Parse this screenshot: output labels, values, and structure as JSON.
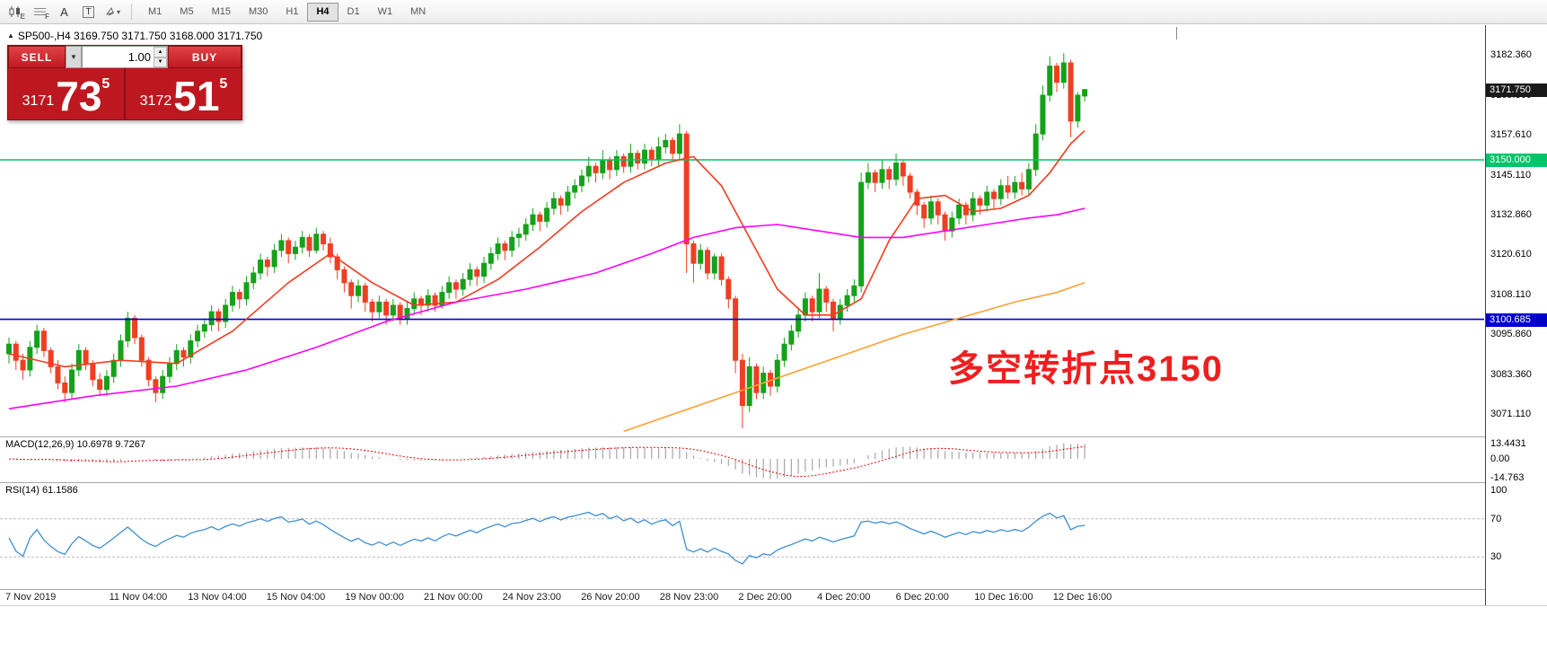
{
  "toolbar": {
    "timeframes": [
      "M1",
      "M5",
      "M15",
      "M30",
      "H1",
      "H4",
      "D1",
      "W1",
      "MN"
    ],
    "active_timeframe": "H4"
  },
  "chart_header": {
    "marker": "▲",
    "symbol_line": "SP500-,H4 3169.750 3171.750 3168.000 3171.750"
  },
  "trade_panel": {
    "sell_label": "SELL",
    "buy_label": "BUY",
    "volume": "1.00",
    "bid": {
      "prefix": "3171",
      "main": "73",
      "sup": "5"
    },
    "ask": {
      "prefix": "3172",
      "main": "51",
      "sup": "5"
    }
  },
  "annotation": {
    "text": "多空转折点3150",
    "color": "#ef1f1f"
  },
  "price_axis": {
    "labels": [
      3182.36,
      3169.86,
      3157.61,
      3145.11,
      3132.86,
      3120.61,
      3108.11,
      3095.86,
      3083.36,
      3071.11
    ],
    "tags": [
      {
        "name": "current-price-tag",
        "text": "3171.750",
        "price": 3171.75,
        "bg": "#1a1a1a",
        "fg": "#ffffff"
      },
      {
        "name": "resistance-line-tag",
        "text": "3150.000",
        "price": 3150.0,
        "bg": "#00c46a",
        "fg": "#ffffff"
      },
      {
        "name": "support-line-tag",
        "text": "3100.685",
        "price": 3100.685,
        "bg": "#0000cc",
        "fg": "#ffffff"
      }
    ]
  },
  "hlines": [
    {
      "name": "resistance-3150",
      "price": 3150.0,
      "color": "#00c46a",
      "width": 1.4
    },
    {
      "name": "support-3100",
      "price": 3100.685,
      "color": "#0000cc",
      "width": 1.6
    }
  ],
  "macd_panel": {
    "label": "MACD(12,26,9) 10.6978 9.7267",
    "axis": [
      {
        "text": "13.4431",
        "value": 13.4431
      },
      {
        "text": "0.00",
        "value": 0
      },
      {
        "text": "-14.763",
        "value": -14.763
      }
    ],
    "histogram_color": "#a6a6a6",
    "signal_color": "#e00000"
  },
  "rsi_panel": {
    "label": "RSI(14) 61.1586",
    "axis": [
      {
        "text": "100",
        "value": 100
      },
      {
        "text": "70",
        "value": 70
      },
      {
        "text": "30",
        "value": 30
      }
    ],
    "levels": [
      70,
      30
    ],
    "line_color": "#3f8fd2"
  },
  "time_axis": [
    "7 Nov 2019",
    "11 Nov 04:00",
    "13 Nov 04:00",
    "15 Nov 04:00",
    "19 Nov 00:00",
    "21 Nov 00:00",
    "24 Nov 23:00",
    "26 Nov 20:00",
    "28 Nov 23:00",
    "2 Dec 20:00",
    "4 Dec 20:00",
    "6 Dec 20:00",
    "10 Dec 16:00",
    "12 Dec 16:00"
  ],
  "chart_data": {
    "type": "candlestick",
    "symbol": "SP500-",
    "timeframe": "H4",
    "ylim": [
      3064,
      3192
    ],
    "colors": {
      "up": "#15a11a",
      "down": "#ee3f23"
    },
    "ohlc": [
      [
        3090,
        3095,
        3087,
        3093
      ],
      [
        3093,
        3094,
        3085,
        3088
      ],
      [
        3088,
        3090,
        3082,
        3085
      ],
      [
        3085,
        3094,
        3083,
        3092
      ],
      [
        3092,
        3099,
        3090,
        3097
      ],
      [
        3097,
        3098,
        3089,
        3091
      ],
      [
        3091,
        3092,
        3084,
        3086
      ],
      [
        3086,
        3088,
        3079,
        3081
      ],
      [
        3081,
        3083,
        3075,
        3078
      ],
      [
        3078,
        3087,
        3076,
        3085
      ],
      [
        3085,
        3093,
        3083,
        3091
      ],
      [
        3091,
        3092,
        3085,
        3087
      ],
      [
        3087,
        3088,
        3080,
        3082
      ],
      [
        3082,
        3084,
        3077,
        3079
      ],
      [
        3079,
        3085,
        3077,
        3083
      ],
      [
        3083,
        3090,
        3081,
        3088
      ],
      [
        3088,
        3096,
        3086,
        3094
      ],
      [
        3094,
        3103,
        3092,
        3101
      ],
      [
        3101,
        3102,
        3093,
        3095
      ],
      [
        3095,
        3096,
        3086,
        3088
      ],
      [
        3088,
        3089,
        3080,
        3082
      ],
      [
        3082,
        3083,
        3075,
        3078
      ],
      [
        3078,
        3085,
        3076,
        3083
      ],
      [
        3083,
        3089,
        3081,
        3087
      ],
      [
        3087,
        3093,
        3085,
        3091
      ],
      [
        3091,
        3092,
        3086,
        3089
      ],
      [
        3089,
        3096,
        3087,
        3094
      ],
      [
        3094,
        3099,
        3092,
        3097
      ],
      [
        3097,
        3101,
        3095,
        3099
      ],
      [
        3099,
        3105,
        3097,
        3103
      ],
      [
        3103,
        3104,
        3097,
        3100
      ],
      [
        3100,
        3107,
        3098,
        3105
      ],
      [
        3105,
        3111,
        3103,
        3109
      ],
      [
        3109,
        3110,
        3104,
        3107
      ],
      [
        3107,
        3114,
        3105,
        3112
      ],
      [
        3112,
        3117,
        3110,
        3115
      ],
      [
        3115,
        3121,
        3113,
        3119
      ],
      [
        3119,
        3120,
        3114,
        3117
      ],
      [
        3117,
        3124,
        3115,
        3122
      ],
      [
        3122,
        3127,
        3120,
        3125
      ],
      [
        3125,
        3126,
        3118,
        3121
      ],
      [
        3121,
        3125,
        3119,
        3123
      ],
      [
        3123,
        3128,
        3121,
        3126
      ],
      [
        3126,
        3127,
        3120,
        3122
      ],
      [
        3122,
        3129,
        3121,
        3127
      ],
      [
        3127,
        3128,
        3122,
        3124
      ],
      [
        3124,
        3126,
        3118,
        3120
      ],
      [
        3120,
        3121,
        3113,
        3116
      ],
      [
        3116,
        3117,
        3109,
        3112
      ],
      [
        3112,
        3113,
        3104,
        3108
      ],
      [
        3108,
        3113,
        3106,
        3111
      ],
      [
        3111,
        3112,
        3103,
        3106
      ],
      [
        3106,
        3107,
        3100,
        3103
      ],
      [
        3103,
        3108,
        3101,
        3106
      ],
      [
        3106,
        3107,
        3099,
        3102
      ],
      [
        3102,
        3107,
        3100,
        3105
      ],
      [
        3105,
        3106,
        3099,
        3101
      ],
      [
        3101,
        3106,
        3099,
        3104
      ],
      [
        3104,
        3109,
        3102,
        3107
      ],
      [
        3107,
        3108,
        3102,
        3105
      ],
      [
        3105,
        3110,
        3103,
        3108
      ],
      [
        3108,
        3109,
        3103,
        3105
      ],
      [
        3105,
        3111,
        3104,
        3109
      ],
      [
        3109,
        3114,
        3107,
        3112
      ],
      [
        3112,
        3113,
        3107,
        3110
      ],
      [
        3110,
        3115,
        3108,
        3113
      ],
      [
        3113,
        3118,
        3111,
        3116
      ],
      [
        3116,
        3117,
        3111,
        3114
      ],
      [
        3114,
        3120,
        3112,
        3118
      ],
      [
        3118,
        3123,
        3116,
        3121
      ],
      [
        3121,
        3126,
        3119,
        3124
      ],
      [
        3124,
        3125,
        3119,
        3122
      ],
      [
        3122,
        3128,
        3120,
        3126
      ],
      [
        3126,
        3129,
        3123,
        3127
      ],
      [
        3127,
        3132,
        3125,
        3130
      ],
      [
        3130,
        3135,
        3128,
        3133
      ],
      [
        3133,
        3134,
        3128,
        3131
      ],
      [
        3131,
        3137,
        3129,
        3135
      ],
      [
        3135,
        3140,
        3133,
        3138
      ],
      [
        3138,
        3139,
        3133,
        3136
      ],
      [
        3136,
        3142,
        3134,
        3140
      ],
      [
        3140,
        3144,
        3138,
        3142
      ],
      [
        3142,
        3147,
        3140,
        3145
      ],
      [
        3145,
        3151,
        3143,
        3148
      ],
      [
        3148,
        3149,
        3143,
        3146
      ],
      [
        3146,
        3153,
        3144,
        3150
      ],
      [
        3150,
        3151,
        3144,
        3147
      ],
      [
        3147,
        3153,
        3145,
        3151
      ],
      [
        3151,
        3152,
        3146,
        3148
      ],
      [
        3148,
        3155,
        3146,
        3152
      ],
      [
        3152,
        3153,
        3147,
        3149
      ],
      [
        3149,
        3155,
        3147,
        3153
      ],
      [
        3153,
        3154,
        3148,
        3150
      ],
      [
        3150,
        3157,
        3148,
        3154
      ],
      [
        3154,
        3158,
        3152,
        3156
      ],
      [
        3156,
        3157,
        3150,
        3152
      ],
      [
        3152,
        3161,
        3150,
        3158
      ],
      [
        3158,
        3159,
        3115,
        3124
      ],
      [
        3124,
        3125,
        3112,
        3118
      ],
      [
        3118,
        3124,
        3116,
        3122
      ],
      [
        3122,
        3123,
        3113,
        3115
      ],
      [
        3115,
        3121,
        3113,
        3120
      ],
      [
        3120,
        3121,
        3111,
        3113
      ],
      [
        3113,
        3114,
        3104,
        3107
      ],
      [
        3107,
        3108,
        3084,
        3088
      ],
      [
        3088,
        3090,
        3067,
        3074
      ],
      [
        3074,
        3089,
        3072,
        3086
      ],
      [
        3086,
        3087,
        3076,
        3078
      ],
      [
        3078,
        3086,
        3076,
        3084
      ],
      [
        3084,
        3085,
        3077,
        3080
      ],
      [
        3080,
        3090,
        3078,
        3088
      ],
      [
        3088,
        3095,
        3086,
        3093
      ],
      [
        3093,
        3099,
        3091,
        3097
      ],
      [
        3097,
        3104,
        3095,
        3102
      ],
      [
        3102,
        3109,
        3100,
        3107
      ],
      [
        3107,
        3108,
        3100,
        3103
      ],
      [
        3103,
        3115,
        3101,
        3110
      ],
      [
        3110,
        3111,
        3103,
        3106
      ],
      [
        3106,
        3107,
        3097,
        3101
      ],
      [
        3101,
        3107,
        3099,
        3105
      ],
      [
        3105,
        3110,
        3103,
        3108
      ],
      [
        3108,
        3113,
        3106,
        3111
      ],
      [
        3111,
        3146,
        3109,
        3143
      ],
      [
        3143,
        3149,
        3141,
        3146
      ],
      [
        3146,
        3147,
        3140,
        3143
      ],
      [
        3143,
        3150,
        3141,
        3147
      ],
      [
        3147,
        3148,
        3141,
        3144
      ],
      [
        3144,
        3152,
        3142,
        3149
      ],
      [
        3149,
        3150,
        3142,
        3145
      ],
      [
        3145,
        3146,
        3138,
        3140
      ],
      [
        3140,
        3141,
        3133,
        3136
      ],
      [
        3136,
        3137,
        3129,
        3132
      ],
      [
        3132,
        3139,
        3130,
        3137
      ],
      [
        3137,
        3138,
        3130,
        3133
      ],
      [
        3133,
        3134,
        3125,
        3128
      ],
      [
        3128,
        3134,
        3126,
        3132
      ],
      [
        3132,
        3138,
        3130,
        3136
      ],
      [
        3136,
        3137,
        3130,
        3133
      ],
      [
        3133,
        3140,
        3131,
        3138
      ],
      [
        3138,
        3139,
        3133,
        3136
      ],
      [
        3136,
        3142,
        3134,
        3140
      ],
      [
        3140,
        3141,
        3135,
        3138
      ],
      [
        3138,
        3144,
        3136,
        3142
      ],
      [
        3142,
        3145,
        3138,
        3140
      ],
      [
        3140,
        3145,
        3138,
        3143
      ],
      [
        3143,
        3146,
        3139,
        3141
      ],
      [
        3141,
        3149,
        3139,
        3147
      ],
      [
        3147,
        3161,
        3145,
        3158
      ],
      [
        3158,
        3173,
        3156,
        3170
      ],
      [
        3170,
        3182,
        3168,
        3179
      ],
      [
        3179,
        3180,
        3171,
        3174
      ],
      [
        3174,
        3183,
        3172,
        3180
      ],
      [
        3180,
        3181,
        3157,
        3162
      ],
      [
        3162,
        3171,
        3160,
        3170
      ],
      [
        3169.75,
        3171.75,
        3168,
        3171.75
      ]
    ],
    "overlays": [
      {
        "name": "ma-fast-red",
        "color": "#f43b1e",
        "points": [
          [
            0,
            3090
          ],
          [
            8,
            3086
          ],
          [
            16,
            3088
          ],
          [
            24,
            3087
          ],
          [
            32,
            3097
          ],
          [
            40,
            3112
          ],
          [
            46,
            3121
          ],
          [
            52,
            3112
          ],
          [
            58,
            3105
          ],
          [
            64,
            3106
          ],
          [
            70,
            3113
          ],
          [
            76,
            3123
          ],
          [
            82,
            3134
          ],
          [
            88,
            3143
          ],
          [
            94,
            3149
          ],
          [
            98,
            3151
          ],
          [
            102,
            3142
          ],
          [
            106,
            3126
          ],
          [
            110,
            3110
          ],
          [
            114,
            3102
          ],
          [
            118,
            3102
          ],
          [
            122,
            3107
          ],
          [
            126,
            3125
          ],
          [
            130,
            3138
          ],
          [
            134,
            3139
          ],
          [
            138,
            3134
          ],
          [
            142,
            3135
          ],
          [
            146,
            3139
          ],
          [
            149,
            3146
          ],
          [
            152,
            3155
          ],
          [
            154,
            3159
          ]
        ]
      },
      {
        "name": "ma-mid-magenta",
        "color": "#ff00ff",
        "points": [
          [
            0,
            3073
          ],
          [
            12,
            3077
          ],
          [
            24,
            3080
          ],
          [
            34,
            3085
          ],
          [
            44,
            3092
          ],
          [
            54,
            3100
          ],
          [
            64,
            3106
          ],
          [
            74,
            3110
          ],
          [
            84,
            3115
          ],
          [
            92,
            3121
          ],
          [
            98,
            3126
          ],
          [
            104,
            3129
          ],
          [
            110,
            3130
          ],
          [
            116,
            3128
          ],
          [
            122,
            3126
          ],
          [
            128,
            3126
          ],
          [
            134,
            3128
          ],
          [
            140,
            3130
          ],
          [
            146,
            3132
          ],
          [
            150,
            3133
          ],
          [
            154,
            3135
          ]
        ]
      },
      {
        "name": "ma-slow-orange",
        "color": "#ffa030",
        "points": [
          [
            88,
            3066
          ],
          [
            96,
            3072
          ],
          [
            104,
            3078
          ],
          [
            112,
            3084
          ],
          [
            120,
            3090
          ],
          [
            128,
            3096
          ],
          [
            136,
            3101
          ],
          [
            144,
            3106
          ],
          [
            150,
            3109
          ],
          [
            154,
            3112
          ]
        ]
      }
    ]
  }
}
